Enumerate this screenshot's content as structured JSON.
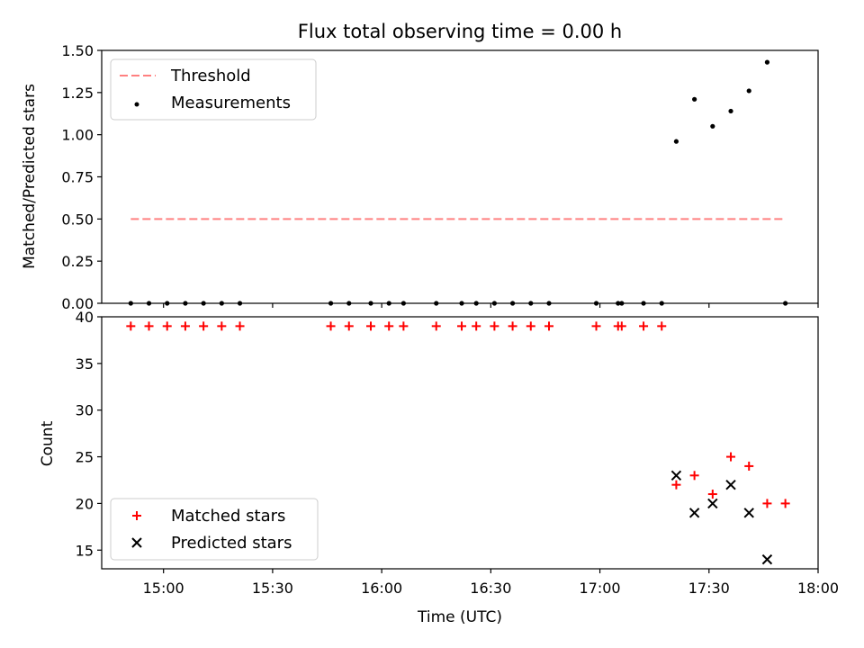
{
  "chart_data": [
    {
      "type": "scatter",
      "title": "Flux total observing time = 0.00 h",
      "xlabel": "",
      "ylabel": "Matched/Predicted stars",
      "ylim": [
        0,
        1.5
      ],
      "yticks": [
        "0.00",
        "0.25",
        "0.50",
        "0.75",
        "1.00",
        "1.25",
        "1.50"
      ],
      "legend_position": "upper-left",
      "grid": false,
      "threshold": {
        "name": "Threshold",
        "value": 0.5,
        "x_start": "14:51",
        "x_end": "17:51",
        "color": "#ff8080",
        "style": "dashed"
      },
      "series": [
        {
          "name": "Measurements",
          "color": "#000000",
          "marker": "dot",
          "x": [
            "14:51",
            "14:56",
            "15:01",
            "15:06",
            "15:11",
            "15:16",
            "15:21",
            "15:46",
            "15:51",
            "15:57",
            "16:02",
            "16:06",
            "16:15",
            "16:22",
            "16:26",
            "16:31",
            "16:36",
            "16:41",
            "16:46",
            "16:59",
            "17:05",
            "17:06",
            "17:12",
            "17:17",
            "17:21",
            "17:26",
            "17:31",
            "17:36",
            "17:41",
            "17:46",
            "17:51"
          ],
          "y": [
            0,
            0,
            0,
            0,
            0,
            0,
            0,
            0,
            0,
            0,
            0,
            0,
            0,
            0,
            0,
            0,
            0,
            0,
            0,
            0,
            0,
            0,
            0,
            0,
            0.96,
            1.21,
            1.05,
            1.14,
            1.26,
            1.43,
            0
          ]
        }
      ]
    },
    {
      "type": "scatter",
      "xlabel": "Time (UTC)",
      "ylabel": "Count",
      "xlim": [
        "14:43",
        "18:00"
      ],
      "ylim": [
        13,
        40
      ],
      "xticks": [
        "15:00",
        "15:30",
        "16:00",
        "16:30",
        "17:00",
        "17:30",
        "18:00"
      ],
      "yticks": [
        "15",
        "20",
        "25",
        "30",
        "35",
        "40"
      ],
      "legend_position": "lower-left",
      "grid": false,
      "series": [
        {
          "name": "Matched stars",
          "color": "#ff0000",
          "marker": "plus",
          "x": [
            "14:51",
            "14:56",
            "15:01",
            "15:06",
            "15:11",
            "15:16",
            "15:21",
            "15:46",
            "15:51",
            "15:57",
            "16:02",
            "16:06",
            "16:15",
            "16:22",
            "16:26",
            "16:31",
            "16:36",
            "16:41",
            "16:46",
            "16:59",
            "17:05",
            "17:06",
            "17:12",
            "17:17",
            "17:21",
            "17:26",
            "17:31",
            "17:36",
            "17:41",
            "17:46",
            "17:51"
          ],
          "y": [
            39,
            39,
            39,
            39,
            39,
            39,
            39,
            39,
            39,
            39,
            39,
            39,
            39,
            39,
            39,
            39,
            39,
            39,
            39,
            39,
            39,
            39,
            39,
            39,
            22,
            23,
            21,
            25,
            24,
            20,
            20
          ]
        },
        {
          "name": "Predicted stars",
          "color": "#000000",
          "marker": "x",
          "x": [
            "17:21",
            "17:26",
            "17:31",
            "17:36",
            "17:41",
            "17:46"
          ],
          "y": [
            23,
            19,
            20,
            22,
            19,
            14
          ]
        }
      ]
    }
  ]
}
